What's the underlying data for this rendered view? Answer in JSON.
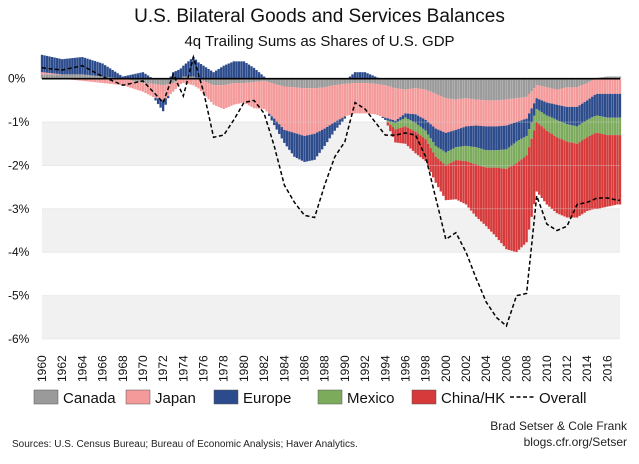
{
  "header": {
    "title": "U.S. Bilateral Goods and Services Balances",
    "subtitle": "4q Trailing Sums as Shares of U.S. GDP"
  },
  "footer": {
    "credit_line1": "Brad Setser & Cole Frank",
    "credit_line2": "blogs.cfr.org/Setser",
    "sources": "Sources: U.S. Census Bureau; Bureau of Economic Analysis; Haver Analytics."
  },
  "colors": {
    "canada": "#9a9a9a",
    "japan": "#f59a9a",
    "europe": "#2c4b8c",
    "mexico": "#7cab5c",
    "china": "#d63a3a",
    "overall": "#000000"
  },
  "chart_data": {
    "type": "area",
    "title": "U.S. Bilateral Goods and Services Balances",
    "subtitle": "4q Trailing Sums as Shares of U.S. GDP",
    "xlabel": "",
    "ylabel": "",
    "xlim": [
      1960,
      2017.25
    ],
    "ylim": [
      -6,
      0.5
    ],
    "y_ticks": [
      0,
      -1,
      -2,
      -3,
      -4,
      -5,
      -6
    ],
    "y_tick_labels": [
      "0%",
      "-1%",
      "-2%",
      "-3%",
      "-4%",
      "-5%",
      "-6%"
    ],
    "x_ticks": [
      1960,
      1962,
      1964,
      1966,
      1968,
      1970,
      1972,
      1974,
      1976,
      1978,
      1980,
      1982,
      1984,
      1986,
      1988,
      1990,
      1992,
      1994,
      1996,
      1998,
      2000,
      2002,
      2004,
      2006,
      2008,
      2010,
      2012,
      2014,
      2016
    ],
    "grid": true,
    "legend_position": "bottom",
    "stacking": "stacked; positive values stack upward from 0, negative values stack downward from 0",
    "x": [
      1960,
      1962,
      1964,
      1966,
      1968,
      1970,
      1971,
      1972,
      1973,
      1974,
      1975,
      1976,
      1977,
      1978,
      1979,
      1980,
      1981,
      1982,
      1983,
      1984,
      1985,
      1986,
      1987,
      1988,
      1989,
      1990,
      1991,
      1992,
      1993,
      1994,
      1995,
      1996,
      1997,
      1998,
      1999,
      2000,
      2001,
      2002,
      2003,
      2004,
      2005,
      2006,
      2007,
      2008,
      2009,
      2010,
      2011,
      2012,
      2013,
      2014,
      2015,
      2016,
      2017
    ],
    "series": [
      {
        "name": "Canada",
        "values": [
          0.1,
          0.1,
          0.1,
          0.05,
          0,
          -0.1,
          -0.12,
          -0.15,
          -0.1,
          0.05,
          0.05,
          -0.05,
          -0.15,
          -0.15,
          -0.1,
          -0.1,
          -0.08,
          -0.05,
          -0.12,
          -0.18,
          -0.2,
          -0.22,
          -0.22,
          -0.2,
          -0.15,
          -0.12,
          -0.1,
          -0.1,
          -0.12,
          -0.15,
          -0.22,
          -0.25,
          -0.22,
          -0.25,
          -0.35,
          -0.45,
          -0.48,
          -0.45,
          -0.48,
          -0.5,
          -0.5,
          -0.48,
          -0.45,
          -0.42,
          -0.15,
          -0.2,
          -0.25,
          -0.2,
          -0.2,
          -0.1,
          0.02,
          0.05,
          0.05
        ]
      },
      {
        "name": "Japan",
        "values": [
          0.05,
          0.0,
          -0.05,
          -0.1,
          -0.15,
          -0.2,
          -0.3,
          -0.35,
          -0.2,
          -0.1,
          -0.15,
          -0.3,
          -0.45,
          -0.55,
          -0.5,
          -0.45,
          -0.6,
          -0.65,
          -0.8,
          -1.0,
          -1.05,
          -1.1,
          -1.05,
          -0.95,
          -0.85,
          -0.75,
          -0.7,
          -0.7,
          -0.7,
          -0.75,
          -0.75,
          -0.55,
          -0.6,
          -0.7,
          -0.8,
          -0.8,
          -0.7,
          -0.65,
          -0.6,
          -0.6,
          -0.6,
          -0.6,
          -0.55,
          -0.5,
          -0.3,
          -0.35,
          -0.35,
          -0.45,
          -0.45,
          -0.4,
          -0.35,
          -0.35,
          -0.35
        ]
      },
      {
        "name": "Europe",
        "values": [
          0.4,
          0.35,
          0.4,
          0.3,
          0.05,
          0.15,
          0.0,
          -0.25,
          0.15,
          0.25,
          0.45,
          0.3,
          0.15,
          0.3,
          0.4,
          0.4,
          0.25,
          0.05,
          -0.15,
          -0.3,
          -0.55,
          -0.6,
          -0.6,
          -0.4,
          -0.2,
          -0.05,
          0.15,
          0.15,
          0.05,
          -0.05,
          -0.05,
          -0.1,
          -0.2,
          -0.25,
          -0.4,
          -0.45,
          -0.4,
          -0.45,
          -0.5,
          -0.55,
          -0.55,
          -0.55,
          -0.45,
          -0.4,
          -0.25,
          -0.3,
          -0.35,
          -0.4,
          -0.45,
          -0.45,
          -0.5,
          -0.55,
          -0.55
        ]
      },
      {
        "name": "Mexico",
        "values": [
          0,
          0,
          0,
          0,
          0,
          0,
          0,
          0,
          0,
          0,
          0,
          0,
          0,
          0,
          0,
          0,
          0,
          0,
          0,
          0,
          0,
          0,
          0,
          0,
          0,
          0,
          0,
          0,
          0,
          0,
          -0.15,
          -0.2,
          -0.2,
          -0.2,
          -0.25,
          -0.3,
          -0.3,
          -0.35,
          -0.4,
          -0.4,
          -0.4,
          -0.45,
          -0.5,
          -0.45,
          -0.3,
          -0.35,
          -0.4,
          -0.4,
          -0.4,
          -0.4,
          -0.4,
          -0.4,
          -0.4
        ]
      },
      {
        "name": "China/HK",
        "values": [
          0,
          0,
          0,
          0,
          0,
          0,
          0,
          0,
          0,
          0,
          0,
          0,
          0,
          0,
          0,
          0,
          0,
          0,
          0,
          0,
          0,
          0,
          0,
          0,
          0,
          0,
          0,
          0,
          0,
          0,
          -0.3,
          -0.4,
          -0.5,
          -0.5,
          -0.6,
          -0.8,
          -0.9,
          -1.0,
          -1.2,
          -1.35,
          -1.6,
          -1.85,
          -2.05,
          -2.0,
          -1.6,
          -1.7,
          -1.75,
          -1.75,
          -1.7,
          -1.7,
          -1.75,
          -1.65,
          -1.6
        ]
      },
      {
        "name": "Overall",
        "style": "dashed line",
        "values": [
          0.25,
          0.2,
          0.3,
          0.05,
          -0.15,
          -0.05,
          -0.3,
          -0.55,
          0.1,
          -0.4,
          0.5,
          -0.3,
          -1.35,
          -1.3,
          -0.95,
          -0.55,
          -0.5,
          -0.8,
          -1.55,
          -2.45,
          -2.85,
          -3.15,
          -3.2,
          -2.45,
          -1.8,
          -1.45,
          -0.55,
          -0.7,
          -1.0,
          -1.3,
          -1.3,
          -1.25,
          -1.3,
          -1.8,
          -2.75,
          -3.7,
          -3.55,
          -4.0,
          -4.6,
          -5.15,
          -5.5,
          -5.7,
          -5.0,
          -4.95,
          -2.7,
          -3.35,
          -3.5,
          -3.4,
          -2.9,
          -2.85,
          -2.75,
          -2.75,
          -2.8
        ]
      }
    ]
  },
  "legend": {
    "items": [
      {
        "label": "Canada",
        "key": "canada"
      },
      {
        "label": "Japan",
        "key": "japan"
      },
      {
        "label": "Europe",
        "key": "europe"
      },
      {
        "label": "Mexico",
        "key": "mexico"
      },
      {
        "label": "China/HK",
        "key": "china"
      },
      {
        "label": "Overall",
        "key": "overall"
      }
    ]
  }
}
